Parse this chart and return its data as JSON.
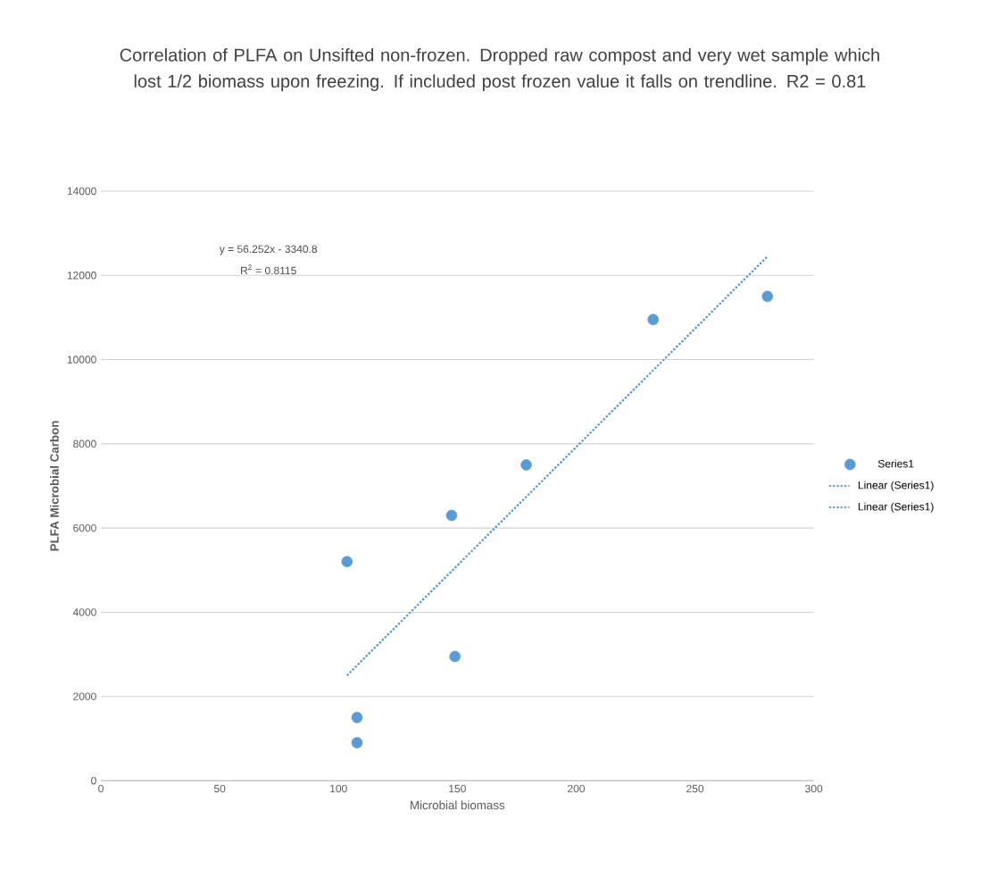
{
  "chart_data": {
    "type": "scatter",
    "title": "Correlation of PLFA on Unsifted non-frozen.  Dropped raw compost and very wet sample which lost 1/2 biomass upon freezing.  If included post frozen value it falls on trendline.  R2 = 0.81",
    "xlabel": "Microbial biomass",
    "ylabel": "PLFA Microbial Carbon",
    "xlim": [
      0,
      300
    ],
    "ylim": [
      0,
      14000
    ],
    "xticks": [
      0,
      50,
      100,
      150,
      200,
      250,
      300
    ],
    "yticks": [
      0,
      2000,
      4000,
      6000,
      8000,
      10000,
      12000,
      14000
    ],
    "grid": "y",
    "legend": "right",
    "series": [
      {
        "name": "Series1",
        "marker": "circle",
        "color": "#5b9bd5",
        "x": [
          103.6,
          107.8,
          107.8,
          147.6,
          149,
          179,
          232.4,
          280.5
        ],
        "values": [
          5200,
          1500,
          900,
          6300,
          2950,
          7500,
          10950,
          11500
        ]
      },
      {
        "name": "Linear (Series1)",
        "type": "line",
        "marker": "none",
        "line_style": "dotted",
        "color": "#5b9bd5",
        "x": [
          103.6,
          280.5
        ],
        "values": [
          2500,
          12450
        ]
      },
      {
        "name": "Linear (Series1)",
        "type": "line",
        "marker": "none",
        "line_style": "dotted",
        "color": "#5b9bd5",
        "x": [
          103.6,
          280.5
        ],
        "values": [
          2500,
          12450
        ]
      }
    ],
    "annotations": [
      "y = 56.252x - 3340.8",
      "R$^{2}$ = 0.8115"
    ]
  }
}
